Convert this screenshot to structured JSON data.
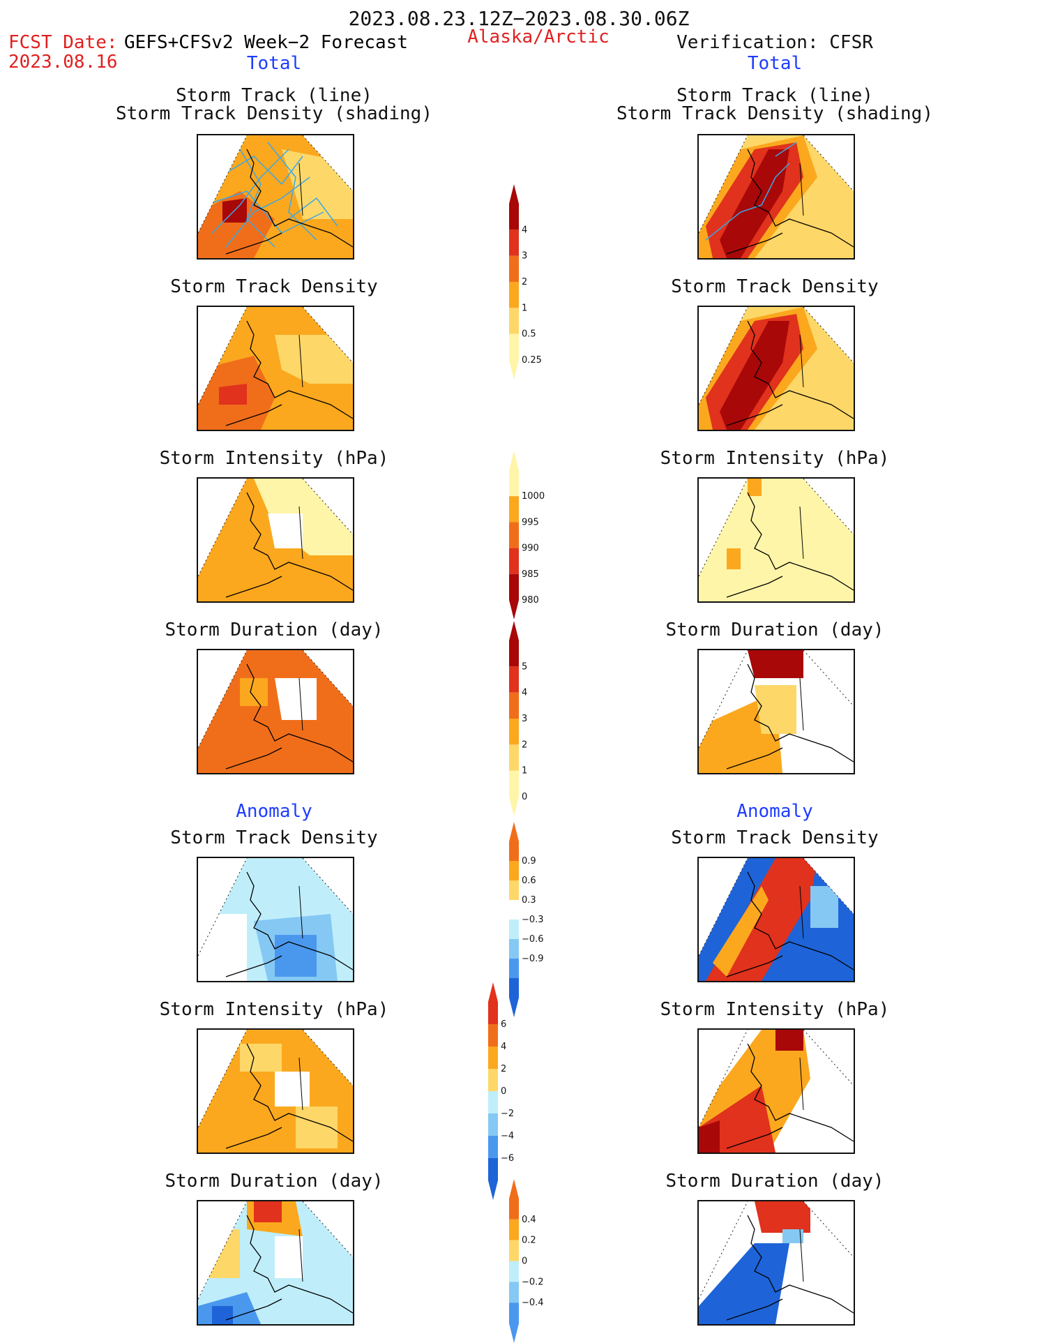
{
  "header": {
    "period": "2023.08.23.12Z−2023.08.30.06Z",
    "region": "Alaska/Arctic",
    "fcst_label": "FCST Date:",
    "fcst_source": "GEFS+CFSv2 Week−2 Forecast",
    "fcst_date": "2023.08.16",
    "verification": "Verification: CFSR",
    "total_left": "Total",
    "total_right": "Total",
    "anomaly_left": "Anomaly",
    "anomaly_right": "Anomaly"
  },
  "titles": {
    "track_line": "Storm Track (line)",
    "track_shading": "Storm Track Density (shading)",
    "density": "Storm Track Density",
    "intensity": "Storm Intensity (hPa)",
    "duration": "Storm Duration (day)"
  },
  "colors": {
    "lightyellow": "#fff5a8",
    "yellow": "#fdd768",
    "orange": "#fba81e",
    "darkorange": "#f06e1a",
    "red": "#e0321c",
    "darkred": "#a80808",
    "white": "#ffffff",
    "lightblue": "#bfeefa",
    "skyblue": "#86c8f4",
    "blue": "#4a98ee",
    "darkblue": "#1e64d8",
    "track": "#3aa8e6"
  },
  "chart_data": [
    {
      "type": "heatmap",
      "panel": "forecast-total-track",
      "title": "Storm Track (line) / Storm Track Density (shading)",
      "legend_levels": [
        0.25,
        0.5,
        1,
        2,
        3,
        4
      ]
    },
    {
      "type": "heatmap",
      "panel": "verification-total-track",
      "title": "Storm Track (line) / Storm Track Density (shading)",
      "legend_levels": [
        0.25,
        0.5,
        1,
        2,
        3,
        4
      ]
    },
    {
      "type": "heatmap",
      "panel": "forecast-total-density",
      "title": "Storm Track Density",
      "legend_levels": [
        0.25,
        0.5,
        1,
        2,
        3,
        4
      ]
    },
    {
      "type": "heatmap",
      "panel": "verification-total-density",
      "title": "Storm Track Density",
      "legend_levels": [
        0.25,
        0.5,
        1,
        2,
        3,
        4
      ]
    },
    {
      "type": "heatmap",
      "panel": "forecast-total-intensity",
      "title": "Storm Intensity (hPa)",
      "legend_levels": [
        1000,
        995,
        990,
        985,
        980
      ]
    },
    {
      "type": "heatmap",
      "panel": "verification-total-intensity",
      "title": "Storm Intensity (hPa)",
      "legend_levels": [
        1000,
        995,
        990,
        985,
        980
      ]
    },
    {
      "type": "heatmap",
      "panel": "forecast-total-duration",
      "title": "Storm Duration (day)",
      "legend_levels": [
        0,
        1,
        2,
        3,
        4,
        5
      ]
    },
    {
      "type": "heatmap",
      "panel": "verification-total-duration",
      "title": "Storm Duration (day)",
      "legend_levels": [
        0,
        1,
        2,
        3,
        4,
        5
      ]
    },
    {
      "type": "heatmap",
      "panel": "forecast-anomaly-density",
      "title": "Storm Track Density",
      "legend_levels": [
        -0.9,
        -0.6,
        -0.3,
        0.3,
        0.6,
        0.9
      ]
    },
    {
      "type": "heatmap",
      "panel": "verification-anomaly-density",
      "title": "Storm Track Density",
      "legend_levels": [
        -0.9,
        -0.6,
        -0.3,
        0.3,
        0.6,
        0.9
      ]
    },
    {
      "type": "heatmap",
      "panel": "forecast-anomaly-intensity",
      "title": "Storm Intensity (hPa)",
      "legend_levels": [
        -6,
        -4,
        -2,
        0,
        2,
        4,
        6
      ]
    },
    {
      "type": "heatmap",
      "panel": "verification-anomaly-intensity",
      "title": "Storm Intensity (hPa)",
      "legend_levels": [
        -6,
        -4,
        -2,
        0,
        2,
        4,
        6
      ]
    },
    {
      "type": "heatmap",
      "panel": "forecast-anomaly-duration",
      "title": "Storm Duration (day)",
      "legend_levels": [
        -0.4,
        -0.2,
        0,
        0.2,
        0.4
      ]
    },
    {
      "type": "heatmap",
      "panel": "verification-anomaly-duration",
      "title": "Storm Duration (day)",
      "legend_levels": [
        -0.4,
        -0.2,
        0,
        0.2,
        0.4
      ]
    }
  ],
  "colorbars": {
    "density": {
      "labels": [
        "4",
        "3",
        "2",
        "1",
        "0.5",
        "0.25"
      ],
      "colors": [
        "#a80808",
        "#e0321c",
        "#f06e1a",
        "#fba81e",
        "#fdd768",
        "#fff5a8"
      ]
    },
    "intensity": {
      "labels": [
        "1000",
        "995",
        "990",
        "985",
        "980"
      ],
      "colors": [
        "#fff5a8",
        "#fba81e",
        "#f06e1a",
        "#e0321c",
        "#a80808"
      ]
    },
    "duration": {
      "labels": [
        "5",
        "4",
        "3",
        "2",
        "1",
        "0"
      ],
      "colors": [
        "#a80808",
        "#e0321c",
        "#f06e1a",
        "#fba81e",
        "#fdd768",
        "#fff5a8"
      ]
    },
    "anom_density": {
      "labels": [
        "0.9",
        "0.6",
        "0.3",
        "−0.3",
        "−0.6",
        "−0.9"
      ],
      "colors": [
        "#f06e1a",
        "#fba81e",
        "#fdd768",
        "#ffffff",
        "#bfeefa",
        "#86c8f4",
        "#4a98ee",
        "#1e64d8"
      ]
    },
    "anom_intensity": {
      "labels": [
        "6",
        "4",
        "2",
        "0",
        "−2",
        "−4",
        "−6"
      ],
      "colors": [
        "#e0321c",
        "#f06e1a",
        "#fba81e",
        "#fdd768",
        "#bfeefa",
        "#86c8f4",
        "#4a98ee",
        "#1e64d8"
      ]
    },
    "anom_duration": {
      "labels": [
        "0.4",
        "0.2",
        "0",
        "−0.2",
        "−0.4"
      ],
      "colors": [
        "#f06e1a",
        "#fba81e",
        "#fdd768",
        "#bfeefa",
        "#86c8f4",
        "#4a98ee"
      ]
    }
  }
}
